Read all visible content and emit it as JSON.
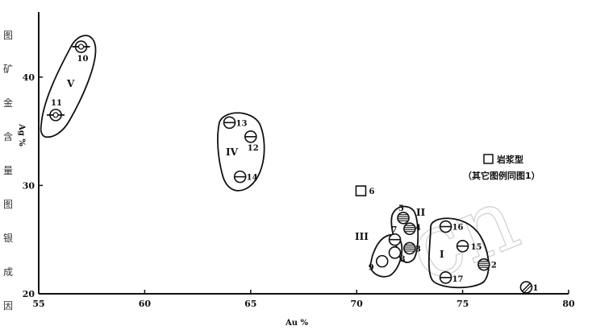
{
  "chart_data": {
    "type": "scatter",
    "xlabel": "Au %",
    "ylabel": "Ag %",
    "xlim": [
      55,
      80
    ],
    "ylim": [
      20,
      46
    ],
    "x_ticks": [
      55,
      60,
      65,
      70,
      75,
      80
    ],
    "y_ticks": [
      20,
      30,
      40
    ],
    "points": [
      {
        "id": "1",
        "x": 78.0,
        "y": 20.6,
        "marker": "hatched-diagonal"
      },
      {
        "id": "2",
        "x": 76.0,
        "y": 22.7,
        "marker": "hatched"
      },
      {
        "id": "3",
        "x": 72.5,
        "y": 24.2,
        "marker": "hatched"
      },
      {
        "id": "4",
        "x": 72.5,
        "y": 26.0,
        "marker": "hatched"
      },
      {
        "id": "5",
        "x": 72.2,
        "y": 27.0,
        "marker": "hatched"
      },
      {
        "id": "6",
        "x": 70.2,
        "y": 29.5,
        "marker": "square"
      },
      {
        "id": "7",
        "x": 71.8,
        "y": 25.0,
        "marker": "circle-half"
      },
      {
        "id": "8",
        "x": 71.8,
        "y": 23.8,
        "marker": "circle-open"
      },
      {
        "id": "9",
        "x": 71.2,
        "y": 23.0,
        "marker": "circle-open"
      },
      {
        "id": "10",
        "x": 57.0,
        "y": 42.8,
        "marker": "circle-bar"
      },
      {
        "id": "11",
        "x": 55.8,
        "y": 36.5,
        "marker": "circle-bar"
      },
      {
        "id": "12",
        "x": 65.0,
        "y": 34.5,
        "marker": "circle-half"
      },
      {
        "id": "13",
        "x": 64.0,
        "y": 35.8,
        "marker": "circle-half"
      },
      {
        "id": "14",
        "x": 64.5,
        "y": 30.8,
        "marker": "circle-half"
      },
      {
        "id": "15",
        "x": 75.0,
        "y": 24.4,
        "marker": "circle-half"
      },
      {
        "id": "16",
        "x": 74.2,
        "y": 26.2,
        "marker": "circle-half"
      },
      {
        "id": "17",
        "x": 74.2,
        "y": 21.5,
        "marker": "circle-half"
      }
    ],
    "groups": [
      {
        "label": "I",
        "members": [
          "15",
          "16",
          "17"
        ]
      },
      {
        "label": "II",
        "members": [
          "3",
          "4",
          "5"
        ]
      },
      {
        "label": "III",
        "members": [
          "7",
          "8",
          "9"
        ]
      },
      {
        "label": "IV",
        "members": [
          "12",
          "13",
          "14"
        ]
      },
      {
        "label": "V",
        "members": [
          "10",
          "11"
        ]
      }
    ],
    "legend": {
      "symbol": "square",
      "line1": "岩浆型",
      "line2": "（其它图例同图1）",
      "placement": "right"
    }
  },
  "margin_text": [
    "图",
    "矿",
    "金",
    "含",
    "量",
    "图",
    "银",
    "成",
    "因"
  ],
  "watermark": "cn"
}
